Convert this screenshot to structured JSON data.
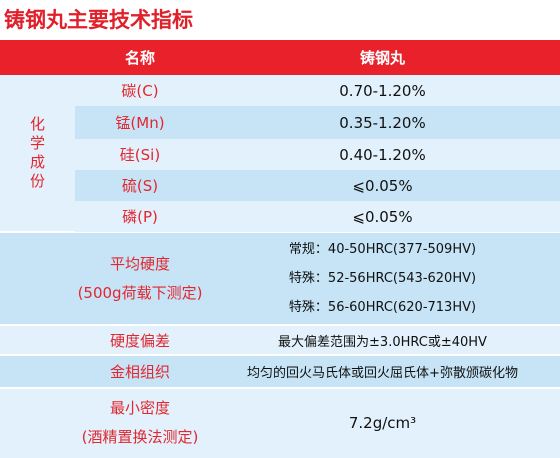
{
  "title": "铸钢丸主要技术指标",
  "table": {
    "header": {
      "name": "名称",
      "value": "铸钢丸"
    },
    "chemistry": {
      "label": "化学成份",
      "rows": [
        {
          "name": "碳(C)",
          "value": "0.70-1.20%"
        },
        {
          "name": "锰(Mn)",
          "value": "0.35-1.20%"
        },
        {
          "name": "硅(Si)",
          "value": "0.40-1.20%"
        },
        {
          "name": "硫(S)",
          "value": "⩽0.05%"
        },
        {
          "name": "磷(P)",
          "value": "⩽0.05%"
        }
      ]
    },
    "hardness": {
      "label": "平均硬度",
      "note": "(500g荷载下测定)",
      "values": [
        "常规：40-50HRC(377-509HV)",
        "特殊：52-56HRC(543-620HV)",
        "特殊：56-60HRC(620-713HV)"
      ]
    },
    "deviation": {
      "label": "硬度偏差",
      "value": "最大偏差范围为±3.0HRC或±40HV"
    },
    "microstructure": {
      "label": "金相组织",
      "value": "均匀的回火马氏体或回火屈氏体+弥散颁碳化物"
    },
    "density": {
      "label": "最小密度",
      "note": "(酒精置换法测定)",
      "value": "7.2g/cm³"
    }
  }
}
